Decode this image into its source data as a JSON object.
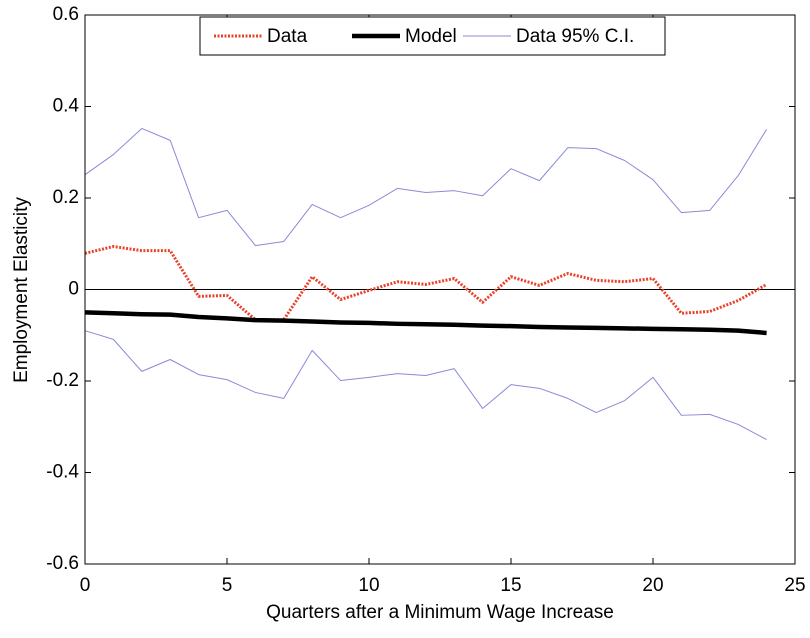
{
  "chart_data": {
    "type": "line",
    "x_label": "Quarters after a Minimum Wage Increase",
    "y_label": "Employment Elasticity",
    "x": [
      0,
      1,
      2,
      3,
      4,
      5,
      6,
      7,
      8,
      9,
      10,
      11,
      12,
      13,
      14,
      15,
      16,
      17,
      18,
      19,
      20,
      21,
      22,
      23,
      24
    ],
    "xlim": [
      0,
      25
    ],
    "xticks": [
      0,
      5,
      10,
      15,
      20,
      25
    ],
    "ylim": [
      -0.6,
      0.6
    ],
    "yticks": [
      -0.6,
      -0.4,
      -0.2,
      0,
      0.2,
      0.4,
      0.6
    ],
    "zero_line": true,
    "legend": "top",
    "series": [
      {
        "name": "Data",
        "color": "#e8432a",
        "style": "dotted",
        "values": [
          0.079,
          0.094,
          0.085,
          0.085,
          -0.015,
          -0.013,
          -0.066,
          -0.066,
          0.028,
          -0.022,
          -0.002,
          0.017,
          0.011,
          0.024,
          -0.028,
          0.028,
          0.009,
          0.035,
          0.02,
          0.017,
          0.024,
          -0.052,
          -0.048,
          -0.024,
          0.011
        ]
      },
      {
        "name": "Model",
        "color": "#000000",
        "style": "thick",
        "values": [
          -0.05,
          -0.052,
          -0.054,
          -0.055,
          -0.06,
          -0.063,
          -0.067,
          -0.068,
          -0.07,
          -0.072,
          -0.073,
          -0.075,
          -0.076,
          -0.077,
          -0.079,
          -0.08,
          -0.082,
          -0.083,
          -0.084,
          -0.085,
          -0.086,
          -0.087,
          -0.088,
          -0.09,
          -0.095
        ]
      },
      {
        "name": "Data 95% C.I.",
        "color": "#8a8ad8",
        "style": "thin",
        "upper": [
          0.251,
          0.295,
          0.352,
          0.326,
          0.157,
          0.173,
          0.096,
          0.105,
          0.186,
          0.157,
          0.184,
          0.221,
          0.212,
          0.216,
          0.205,
          0.264,
          0.238,
          0.31,
          0.308,
          0.282,
          0.24,
          0.168,
          0.173,
          0.249,
          0.35
        ],
        "lower": [
          -0.09,
          -0.109,
          -0.179,
          -0.153,
          -0.186,
          -0.197,
          -0.225,
          -0.238,
          -0.133,
          -0.199,
          -0.192,
          -0.184,
          -0.188,
          -0.173,
          -0.26,
          -0.208,
          -0.216,
          -0.238,
          -0.269,
          -0.243,
          -0.192,
          -0.275,
          -0.273,
          -0.295,
          -0.328
        ]
      }
    ]
  }
}
